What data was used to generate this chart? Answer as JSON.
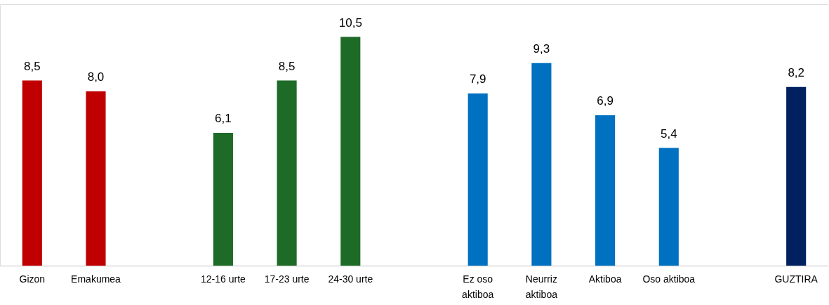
{
  "chart_data": {
    "type": "bar",
    "categories": [
      "Gizon",
      "Emakumea",
      null,
      "12-16 urte",
      "17-23 urte",
      "24-30 urte",
      null,
      "Ez oso aktiboa",
      "Neurriz aktiboa",
      "Aktiboa",
      "Oso aktiboa",
      null,
      "GUZTIRA"
    ],
    "values": [
      8.5,
      8.0,
      null,
      6.1,
      8.5,
      10.5,
      null,
      7.9,
      9.3,
      6.9,
      5.4,
      null,
      8.2
    ],
    "value_labels": [
      "8,5",
      "8,0",
      null,
      "6,1",
      "8,5",
      "10,5",
      null,
      "7,9",
      "9,3",
      "6,9",
      "5,4",
      null,
      "8,2"
    ],
    "colors": [
      "#c00000",
      "#c00000",
      null,
      "#1e6b28",
      "#1e6b28",
      "#1e6b28",
      null,
      "#0070c0",
      "#0070c0",
      "#0070c0",
      "#0070c0",
      null,
      "#002060"
    ],
    "ylim": [
      0,
      12
    ],
    "tick_labels": "x"
  }
}
